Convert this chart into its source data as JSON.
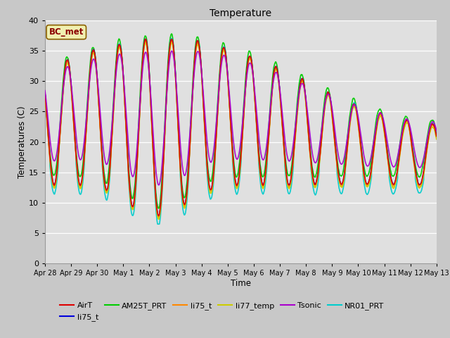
{
  "title": "Temperature",
  "xlabel": "Time",
  "ylabel": "Temperatures (C)",
  "ylim": [
    0,
    40
  ],
  "yticks": [
    0,
    5,
    10,
    15,
    20,
    25,
    30,
    35,
    40
  ],
  "fig_bg": "#c8c8c8",
  "plot_bg": "#e0e0e0",
  "annotation_text": "BC_met",
  "annotation_box_color": "#f0f0b0",
  "annotation_text_color": "#8b0000",
  "annotation_border_color": "#8b6000",
  "series": [
    {
      "name": "AirT",
      "color": "#dd0000",
      "lw": 1.2,
      "zorder": 5
    },
    {
      "name": "li75_t",
      "color": "#0000dd",
      "lw": 1.2,
      "zorder": 4
    },
    {
      "name": "AM25T_PRT",
      "color": "#00cc00",
      "lw": 1.2,
      "zorder": 3
    },
    {
      "name": "li75_t",
      "color": "#ff8800",
      "lw": 1.2,
      "zorder": 4
    },
    {
      "name": "li77_temp",
      "color": "#cccc00",
      "lw": 1.2,
      "zorder": 4
    },
    {
      "name": "Tsonic",
      "color": "#aa00cc",
      "lw": 1.2,
      "zorder": 6
    },
    {
      "name": "NR01_PRT",
      "color": "#00cccc",
      "lw": 1.2,
      "zorder": 3
    }
  ],
  "date_labels": [
    "Apr 28",
    "Apr 29",
    "Apr 30",
    "May 1",
    "May 2",
    "May 3",
    "May 4",
    "May 5",
    "May 6",
    "May 7",
    "May 8",
    "May 9",
    "May 10",
    "May 11",
    "May 12",
    "May 13"
  ],
  "date_ticks": [
    0,
    1,
    2,
    3,
    4,
    5,
    6,
    7,
    8,
    9,
    10,
    11,
    12,
    13,
    14,
    15
  ]
}
